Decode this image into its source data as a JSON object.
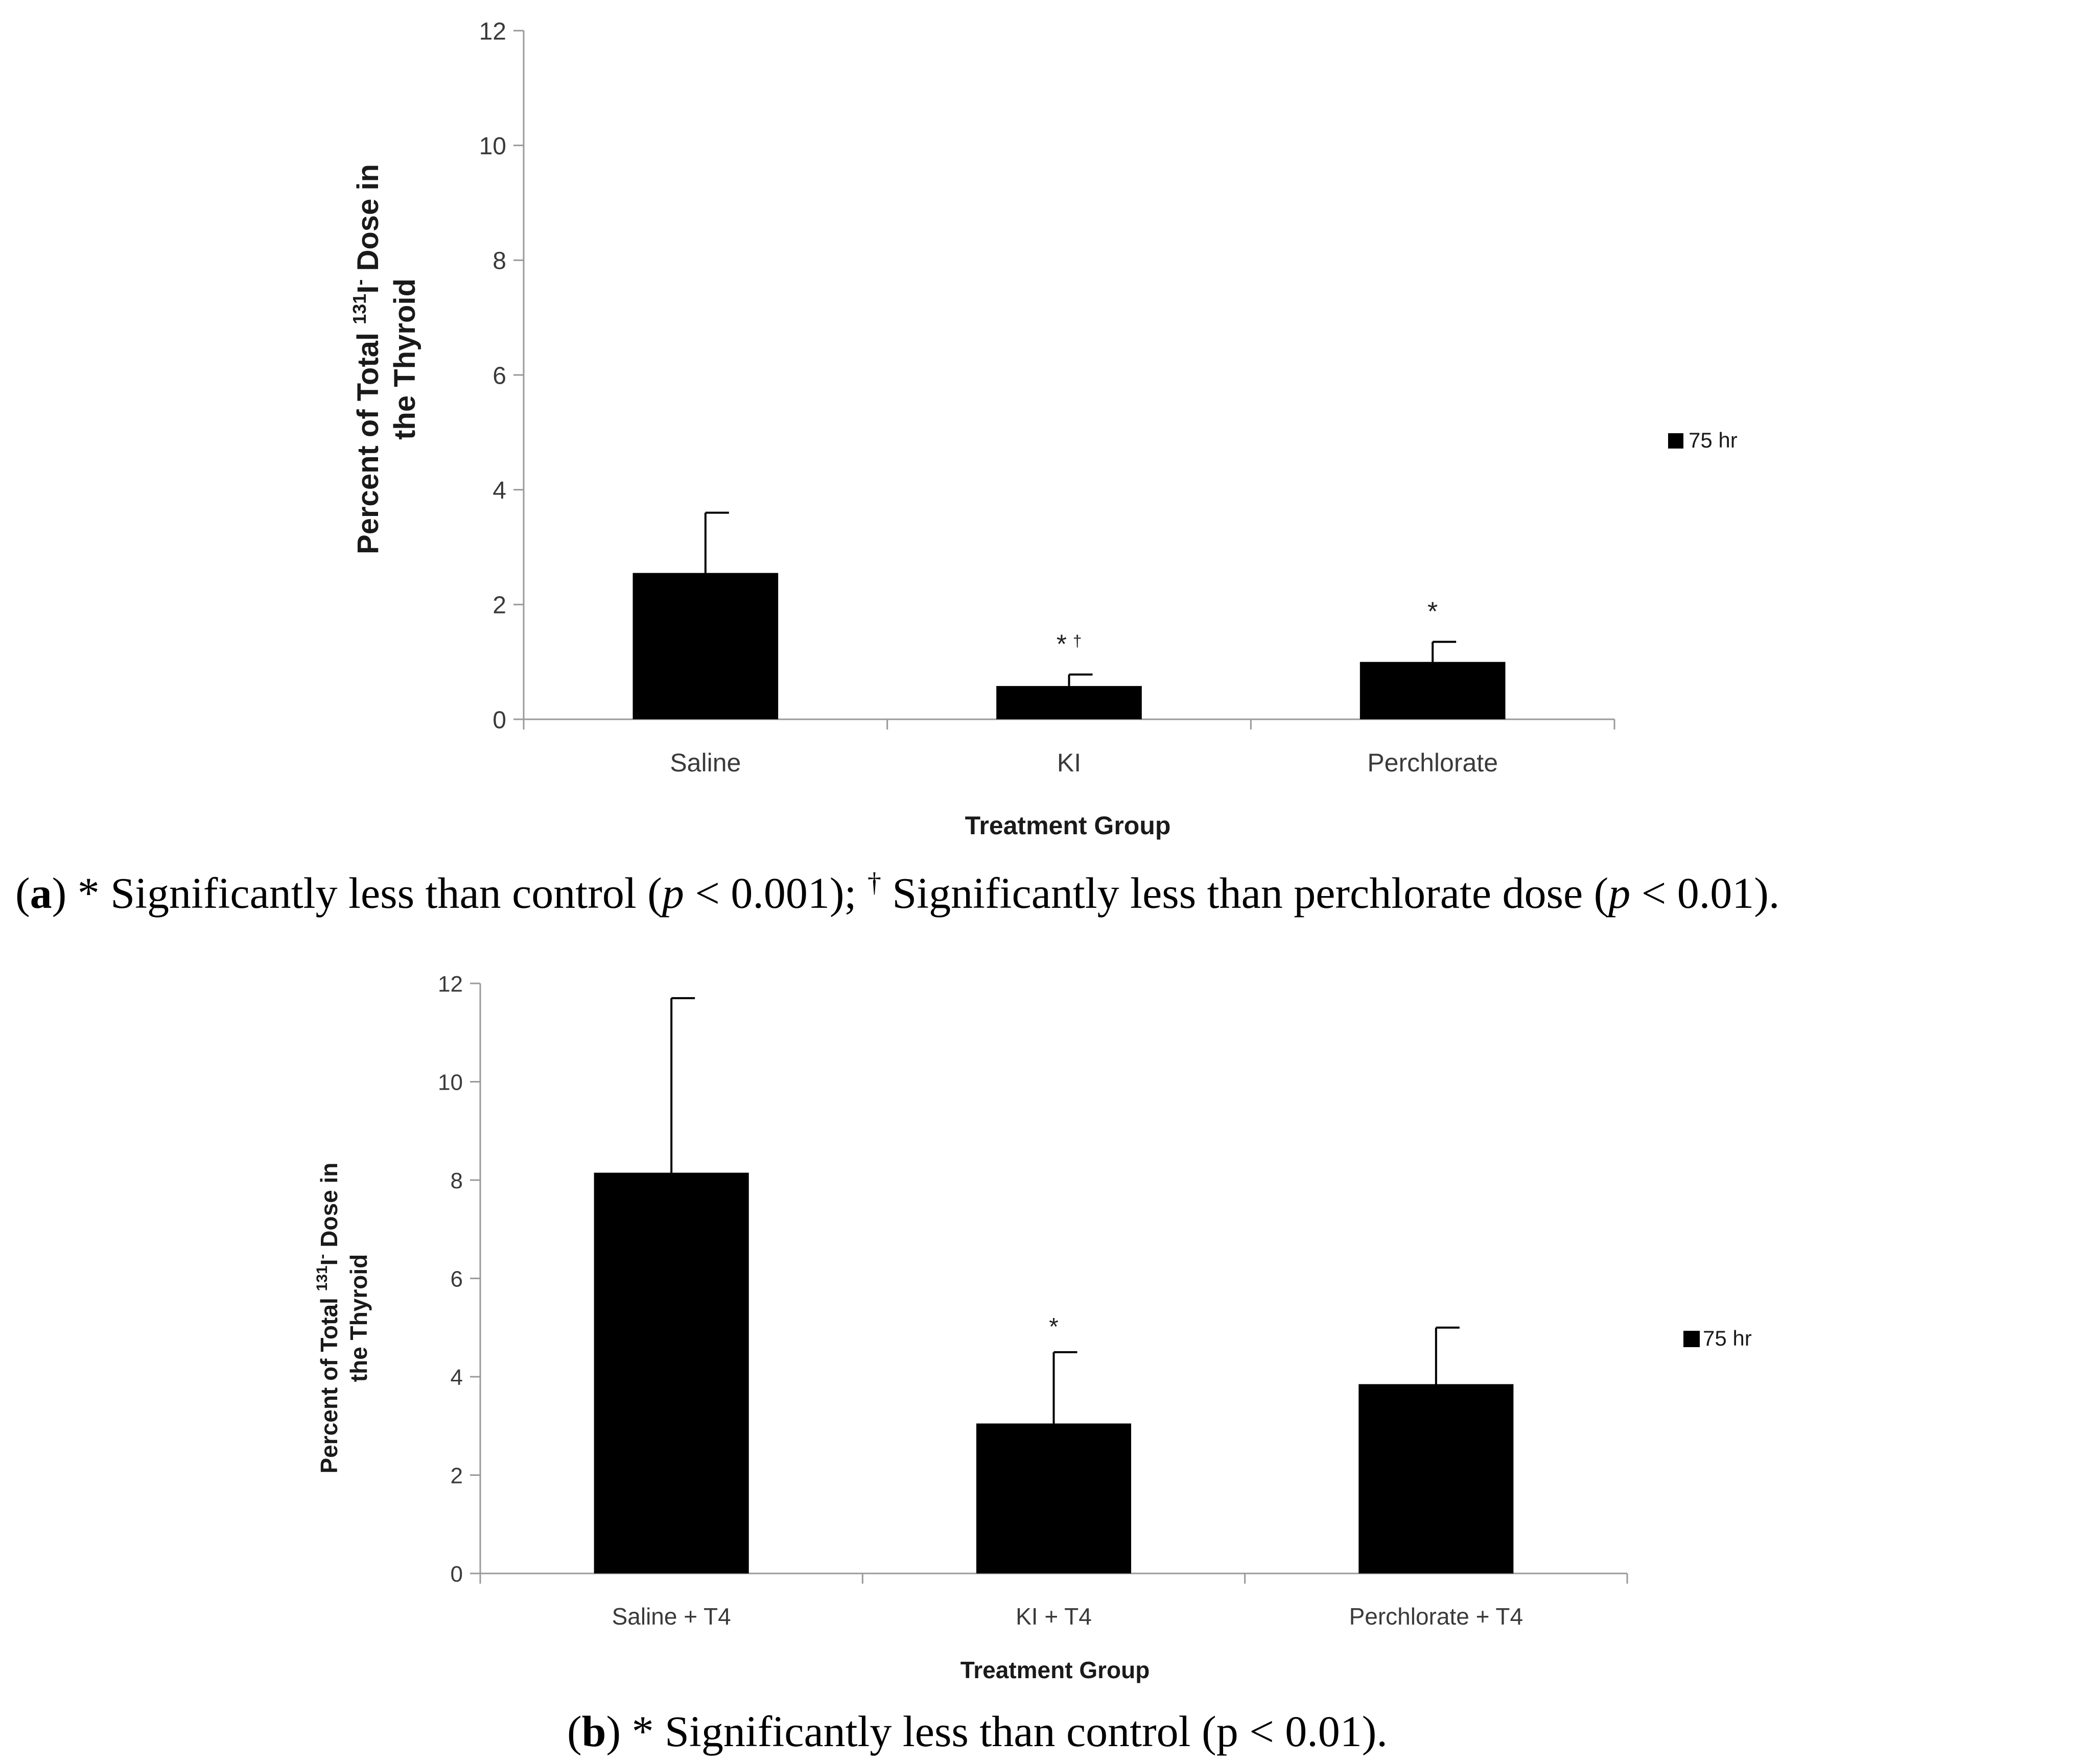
{
  "chart_data": [
    {
      "type": "bar",
      "panel": "a",
      "title": "",
      "categories": [
        "Saline",
        "KI",
        "Perchlorate"
      ],
      "series": [
        {
          "name": "75 hr",
          "values": [
            2.55,
            0.58,
            1.0
          ],
          "error": [
            1.05,
            0.2,
            0.35
          ]
        }
      ],
      "sig_marks": [
        "",
        "*",
        "*"
      ],
      "sig_dagger": [
        "",
        "†",
        ""
      ],
      "xlabel": "Treatment Group",
      "ylabel_pre": "Percent of Total ",
      "ylabel_sup": "131",
      "ylabel_mid": "I",
      "ylabel_sup2": "-",
      "ylabel_post": " Dose in",
      "ylabel_line2": "the Thyroid",
      "ylim": [
        0,
        12
      ],
      "yticks": [
        0,
        2,
        4,
        6,
        8,
        10,
        12
      ],
      "legend_position": "right",
      "grid": false,
      "caption": {
        "label": "a",
        "part1": " * Significantly less than control (",
        "p1": "p",
        "part2": " < 0.001); ",
        "dagger": "†",
        "part3": " Significantly less than perchlorate dose (",
        "p2": "p",
        "part4": " < 0.01)."
      }
    },
    {
      "type": "bar",
      "panel": "b",
      "title": "",
      "categories": [
        "Saline + T4",
        "KI + T4",
        "Perchlorate + T4"
      ],
      "series": [
        {
          "name": "75 hr",
          "values": [
            8.15,
            3.05,
            3.85
          ],
          "error": [
            3.55,
            1.45,
            1.15
          ]
        }
      ],
      "sig_marks": [
        "",
        "*",
        ""
      ],
      "sig_dagger": [
        "",
        "",
        ""
      ],
      "xlabel": "Treatment Group",
      "ylabel_pre": "Percent of Total ",
      "ylabel_sup": "131",
      "ylabel_mid": "I",
      "ylabel_sup2": "-",
      "ylabel_post": " Dose in",
      "ylabel_line2": "the Thyroid",
      "ylim": [
        0,
        12
      ],
      "yticks": [
        0,
        2,
        4,
        6,
        8,
        10,
        12
      ],
      "legend_position": "right",
      "grid": false,
      "caption": {
        "label": "b",
        "part1": " * Significantly less than control (p < 0.01)."
      }
    }
  ],
  "colors": {
    "bar": "#000000",
    "axis": "#9a9a9a",
    "text": "#1a1a1a"
  }
}
